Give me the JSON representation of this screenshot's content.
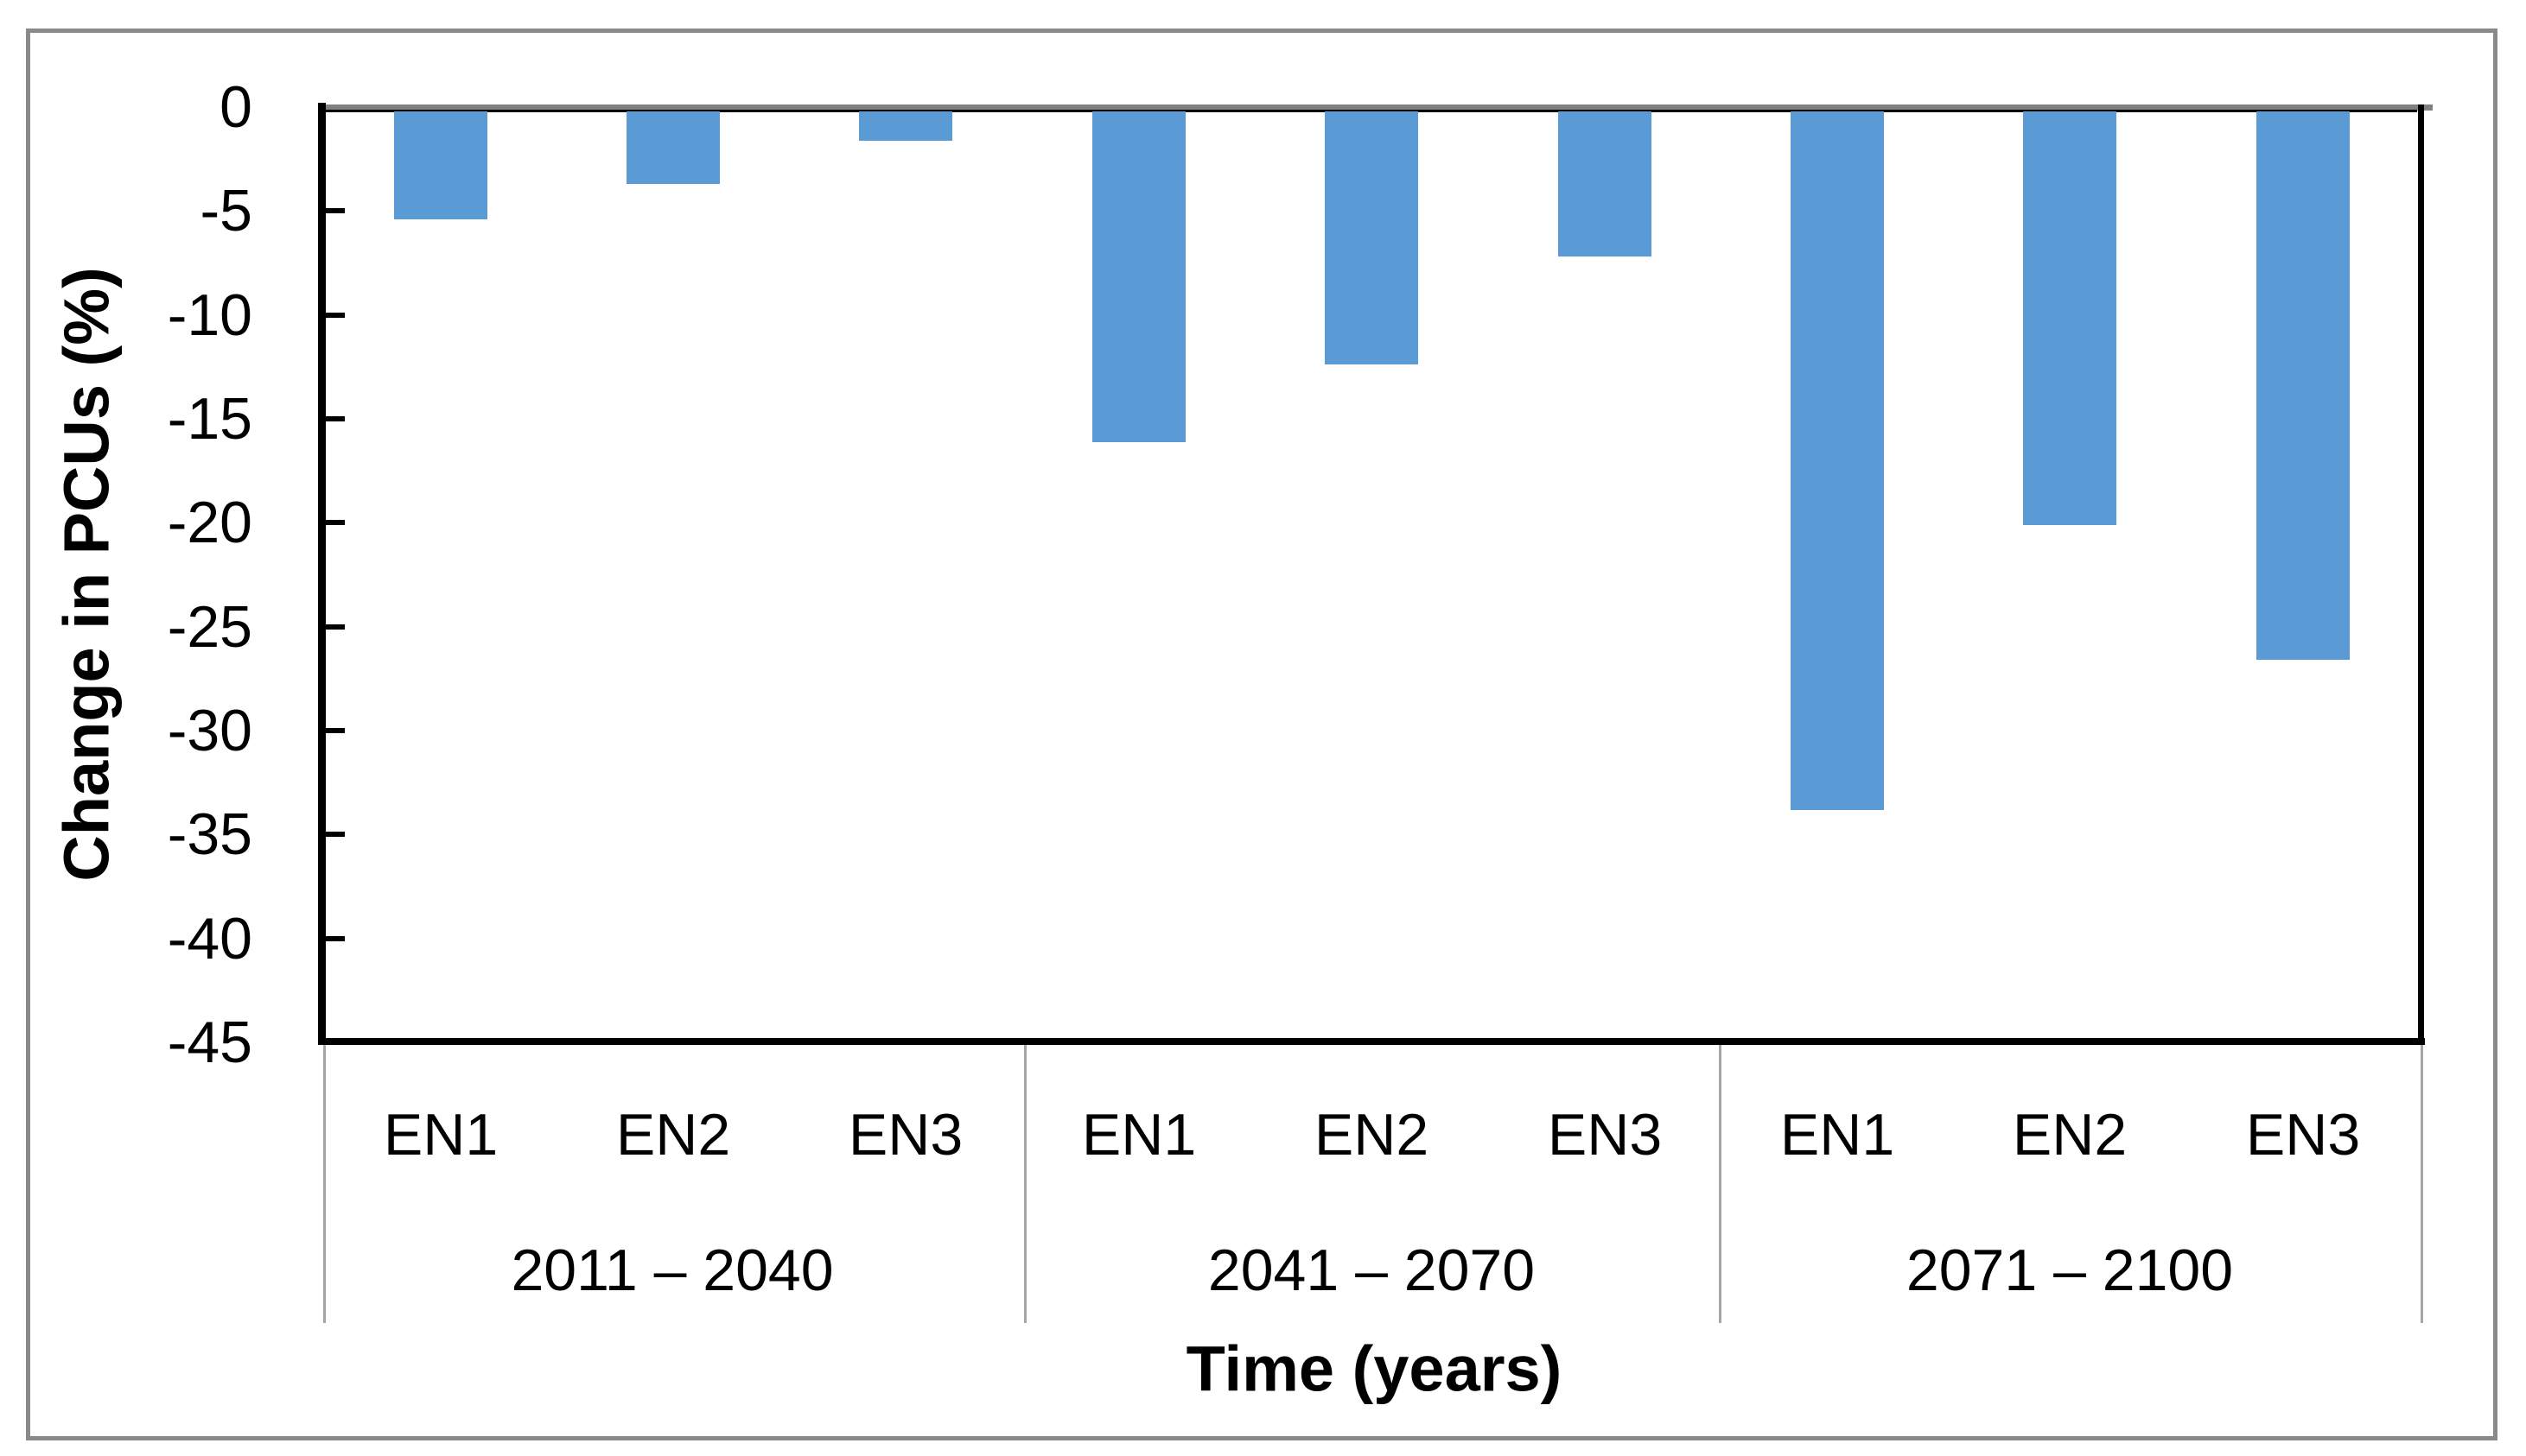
{
  "figure": {
    "background_color": "#ffffff",
    "border_color": "#898989"
  },
  "chart_data": {
    "type": "bar",
    "title": "",
    "xlabel": "Time (years)",
    "ylabel": "Change in PCUs (%)",
    "ylim": [
      -45,
      0
    ],
    "y_tick_labels": [
      "0",
      "-5",
      "-10",
      "-15",
      "-20",
      "-25",
      "-30",
      "-35",
      "-40",
      "-45"
    ],
    "y_tick_values": [
      0,
      -5,
      -10,
      -15,
      -20,
      -25,
      -30,
      -35,
      -40,
      -45
    ],
    "grid": false,
    "legend": false,
    "bar_color": "#5B9BD5",
    "axis_color": "#000000",
    "zero_line_color": "#808080",
    "separator_color": "#A6A6A6",
    "categories": [
      "EN1",
      "EN2",
      "EN3",
      "EN1",
      "EN2",
      "EN3",
      "EN1",
      "EN2",
      "EN3"
    ],
    "values": [
      -5.4,
      -3.7,
      -1.6,
      -16.1,
      -12.4,
      -7.2,
      -33.8,
      -20.1,
      -26.6
    ],
    "groups": [
      {
        "label": "2011 – 2040",
        "categories": [
          "EN1",
          "EN2",
          "EN3"
        ],
        "values": [
          -5.4,
          -3.7,
          -1.6
        ]
      },
      {
        "label": "2041 – 2070",
        "categories": [
          "EN1",
          "EN2",
          "EN3"
        ],
        "values": [
          -16.1,
          -12.4,
          -7.2
        ]
      },
      {
        "label": "2071 – 2100",
        "categories": [
          "EN1",
          "EN2",
          "EN3"
        ],
        "values": [
          -33.8,
          -20.1,
          -26.6
        ]
      }
    ]
  }
}
